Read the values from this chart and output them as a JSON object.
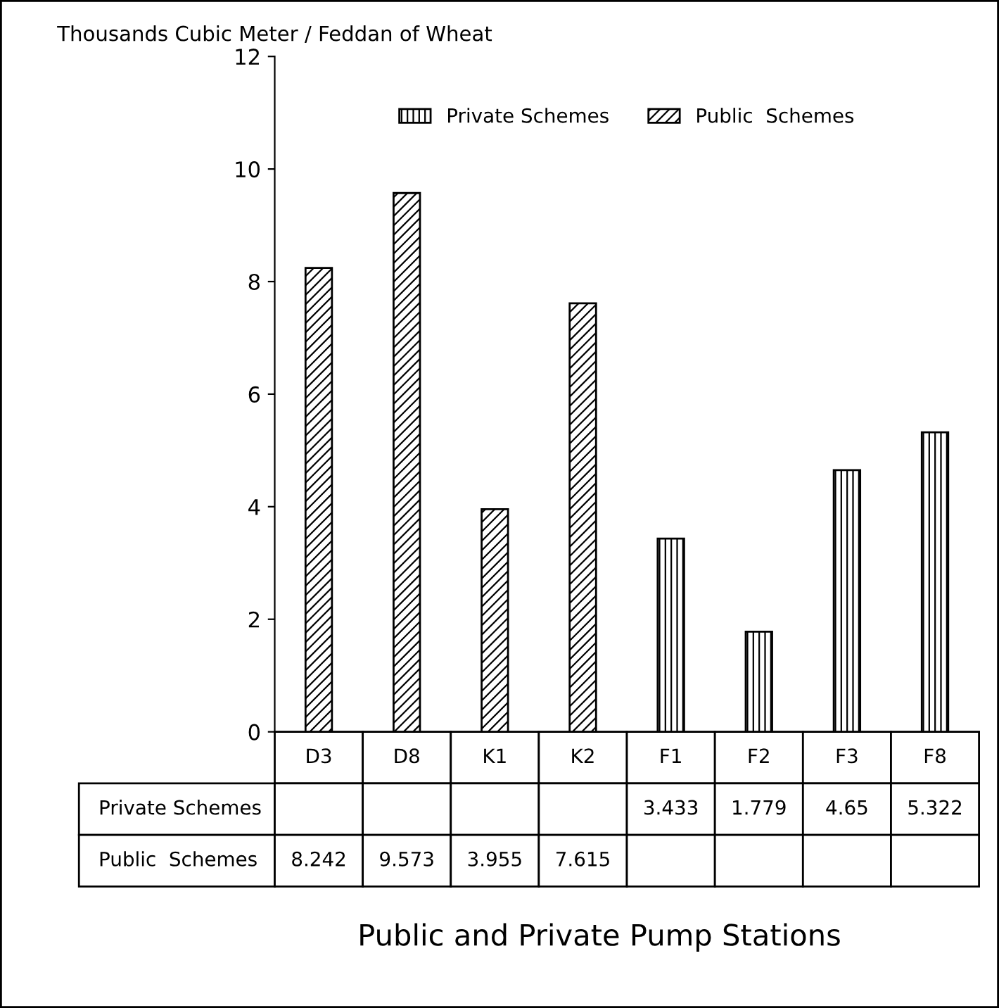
{
  "chart_data": {
    "type": "bar",
    "title": "Public and Private Pump Stations",
    "ylabel": "Thousands Cubic Meter / Feddan of Wheat",
    "categories": [
      "D3",
      "D8",
      "K1",
      "K2",
      "F1",
      "F2",
      "F3",
      "F8"
    ],
    "series": [
      {
        "name": "Private Schemes",
        "color": "#000000",
        "values": [
          null,
          null,
          null,
          null,
          3.433,
          1.779,
          4.65,
          5.322
        ]
      },
      {
        "name": "Public  Schemes",
        "color": "#000000",
        "values": [
          8.242,
          9.573,
          3.955,
          7.615,
          null,
          null,
          null,
          null
        ]
      }
    ],
    "ylim": [
      0,
      12
    ],
    "yticks": [
      0,
      2,
      4,
      6,
      8,
      10,
      12
    ],
    "data_labels": true,
    "legend": "top",
    "grid": false
  }
}
